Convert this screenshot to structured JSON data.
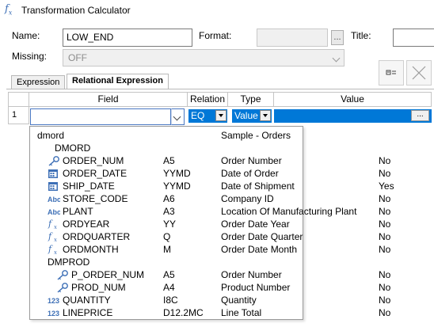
{
  "window": {
    "title": "Transformation Calculator",
    "icon": "fx-icon"
  },
  "form": {
    "name_label": "Name:",
    "name_value": "LOW_END",
    "format_label": "Format:",
    "format_value": "",
    "format_button": "...",
    "title_label": "Title:",
    "title_value": "",
    "missing_label": "Missing:",
    "missing_value": "OFF"
  },
  "tabs": [
    {
      "label": "Expression",
      "active": false
    },
    {
      "label": "Relational Expression",
      "active": true
    }
  ],
  "grid": {
    "headers": [
      "Field",
      "Relation",
      "Type",
      "Value"
    ],
    "row_number": "1",
    "field_value": "",
    "relation": "EQ",
    "type": "Value",
    "value": "",
    "value_button": "..."
  },
  "dropdown": {
    "rows": [
      {
        "indent": 0,
        "icon": "",
        "name": "dmord",
        "format": "",
        "title": "Sample - Orders",
        "missing": ""
      },
      {
        "indent": 1,
        "icon": "",
        "name": "DMORD",
        "format": "",
        "title": "",
        "missing": ""
      },
      {
        "indent": 2,
        "icon": "key-icon",
        "name": "ORDER_NUM",
        "format": "A5",
        "title": "Order Number",
        "missing": "No"
      },
      {
        "indent": 2,
        "icon": "calendar-icon",
        "name": "ORDER_DATE",
        "format": "YYMD",
        "title": "Date of Order",
        "missing": "No"
      },
      {
        "indent": 2,
        "icon": "calendar-icon",
        "name": "SHIP_DATE",
        "format": "YYMD",
        "title": "Date of Shipment",
        "missing": "Yes"
      },
      {
        "indent": 2,
        "icon": "text-abc-icon",
        "name": "STORE_CODE",
        "format": "A6",
        "title": "Company ID",
        "missing": "No"
      },
      {
        "indent": 2,
        "icon": "text-abc-icon",
        "name": "PLANT",
        "format": "A3",
        "title": "Location Of Manufacturing Plant",
        "missing": "No"
      },
      {
        "indent": 2,
        "icon": "fx-icon",
        "name": "ORDYEAR",
        "format": "YY",
        "title": "Order Date Year",
        "missing": "No"
      },
      {
        "indent": 2,
        "icon": "fx-icon",
        "name": "ORDQUARTER",
        "format": "Q",
        "title": "Order Date Quarter",
        "missing": "No"
      },
      {
        "indent": 2,
        "icon": "fx-icon",
        "name": "ORDMONTH",
        "format": "M",
        "title": "Order Date Month",
        "missing": "No"
      },
      {
        "indent": 2,
        "icon": "",
        "name": "DMPROD",
        "format": "",
        "title": "",
        "missing": ""
      },
      {
        "indent": 3,
        "icon": "key-icon",
        "name": "P_ORDER_NUM",
        "format": "A5",
        "title": "Order Number",
        "missing": "No"
      },
      {
        "indent": 3,
        "icon": "key-icon",
        "name": "PROD_NUM",
        "format": "A4",
        "title": "Product Number",
        "missing": "No"
      },
      {
        "indent": 2,
        "icon": "numeric-123-icon",
        "name": "QUANTITY",
        "format": "I8C",
        "title": "Quantity",
        "missing": "No"
      },
      {
        "indent": 2,
        "icon": "numeric-123-icon",
        "name": "LINEPRICE",
        "format": "D12.2MC",
        "title": "Line Total",
        "missing": "No"
      }
    ]
  },
  "colors": {
    "accent": "#0078d7",
    "icon_blue": "#3d6fb6",
    "focus_border": "#4a78c2"
  }
}
